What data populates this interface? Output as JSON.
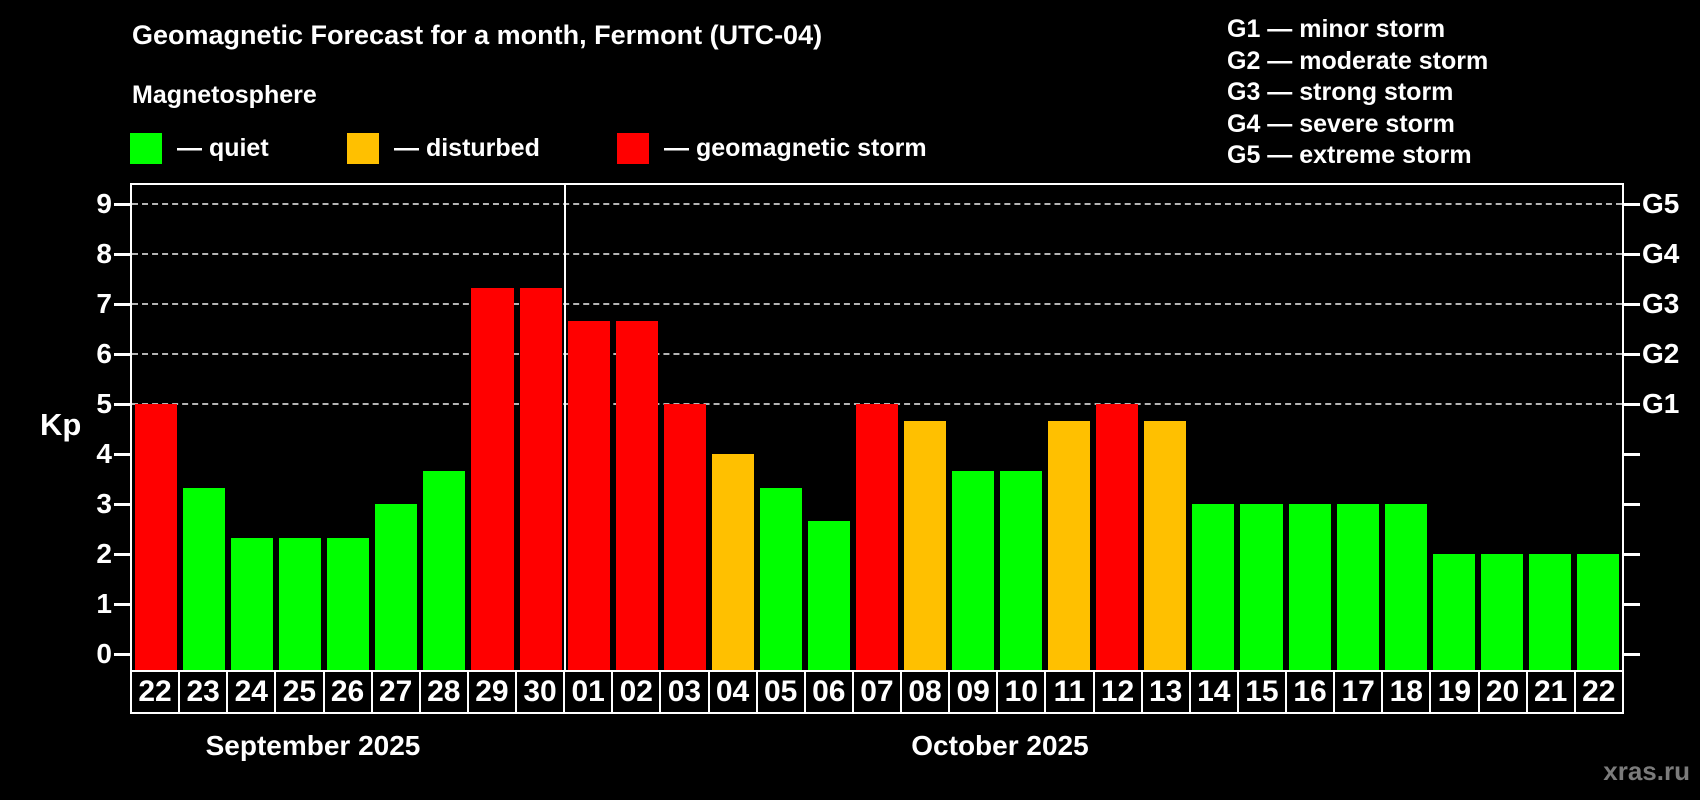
{
  "title": "Geomagnetic Forecast for a month, Fermont (UTC-04)",
  "subtitle": "Magnetosphere",
  "legend": {
    "items": [
      {
        "key": "quiet",
        "label": "— quiet",
        "color": "#00ff00"
      },
      {
        "key": "disturbed",
        "label": "— disturbed",
        "color": "#ffc000"
      },
      {
        "key": "storm",
        "label": "— geomagnetic storm",
        "color": "#ff0000"
      }
    ]
  },
  "gscale_legend": [
    "G1 — minor storm",
    "G2 — moderate storm",
    "G3 — strong storm",
    "G4 — severe storm",
    "G5 — extreme storm"
  ],
  "axes": {
    "y_label": "Kp",
    "y_ticks": [
      0,
      1,
      2,
      3,
      4,
      5,
      6,
      7,
      8,
      9
    ],
    "right_labels": [
      {
        "kp": 5,
        "label": "G1"
      },
      {
        "kp": 6,
        "label": "G2"
      },
      {
        "kp": 7,
        "label": "G3"
      },
      {
        "kp": 8,
        "label": "G4"
      },
      {
        "kp": 9,
        "label": "G5"
      }
    ]
  },
  "months": [
    {
      "label": "September 2025",
      "days": 9
    },
    {
      "label": "October 2025",
      "days": 22
    }
  ],
  "watermark": "xras.ru",
  "chart_data": {
    "type": "bar",
    "title": "Geomagnetic Forecast for a month, Fermont (UTC-04)",
    "xlabel": "",
    "ylabel": "Kp",
    "ylim": [
      0,
      9.4
    ],
    "grid": "dashed horizontal at Kp 5-9",
    "legend_position": "top-left and top-right",
    "status_colors": {
      "quiet": "#00ff00",
      "disturbed": "#ffc000",
      "storm": "#ff0000"
    },
    "categories": [
      "22",
      "23",
      "24",
      "25",
      "26",
      "27",
      "28",
      "29",
      "30",
      "01",
      "02",
      "03",
      "04",
      "05",
      "06",
      "07",
      "08",
      "09",
      "10",
      "11",
      "12",
      "13",
      "14",
      "15",
      "16",
      "17",
      "18",
      "19",
      "20",
      "21",
      "22"
    ],
    "values": [
      5,
      3.33,
      2.33,
      2.33,
      2.33,
      3,
      3.67,
      7.33,
      7.33,
      6.67,
      6.67,
      5,
      4,
      3.33,
      2.67,
      5,
      4.67,
      3.67,
      3.67,
      4.67,
      5,
      4.67,
      3,
      3,
      3,
      3,
      3,
      2,
      2,
      2,
      2
    ],
    "statuses": [
      "storm",
      "quiet",
      "quiet",
      "quiet",
      "quiet",
      "quiet",
      "quiet",
      "storm",
      "storm",
      "storm",
      "storm",
      "storm",
      "disturbed",
      "quiet",
      "quiet",
      "storm",
      "disturbed",
      "quiet",
      "quiet",
      "disturbed",
      "storm",
      "disturbed",
      "quiet",
      "quiet",
      "quiet",
      "quiet",
      "quiet",
      "quiet",
      "quiet",
      "quiet",
      "quiet"
    ]
  }
}
